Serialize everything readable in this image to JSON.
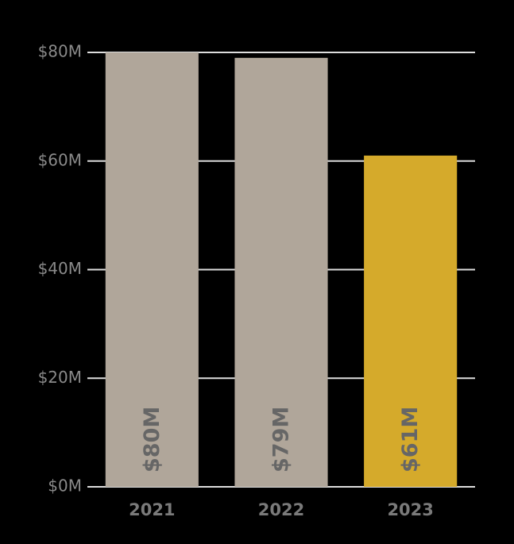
{
  "chart_data": {
    "type": "bar",
    "categories": [
      "2021",
      "2022",
      "2023"
    ],
    "values": [
      80,
      79,
      61
    ],
    "value_labels": [
      "$80M",
      "$79M",
      "$61M"
    ],
    "colors": [
      "#b0a69a",
      "#b0a69a",
      "#d5aa2b"
    ],
    "ylim": [
      0,
      80
    ],
    "yticks": [
      {
        "value": 0,
        "label": "$0M"
      },
      {
        "value": 20,
        "label": "$20M"
      },
      {
        "value": 40,
        "label": "$40M"
      },
      {
        "value": 60,
        "label": "$60M"
      },
      {
        "value": 80,
        "label": "$80M"
      }
    ],
    "grid": true
  }
}
